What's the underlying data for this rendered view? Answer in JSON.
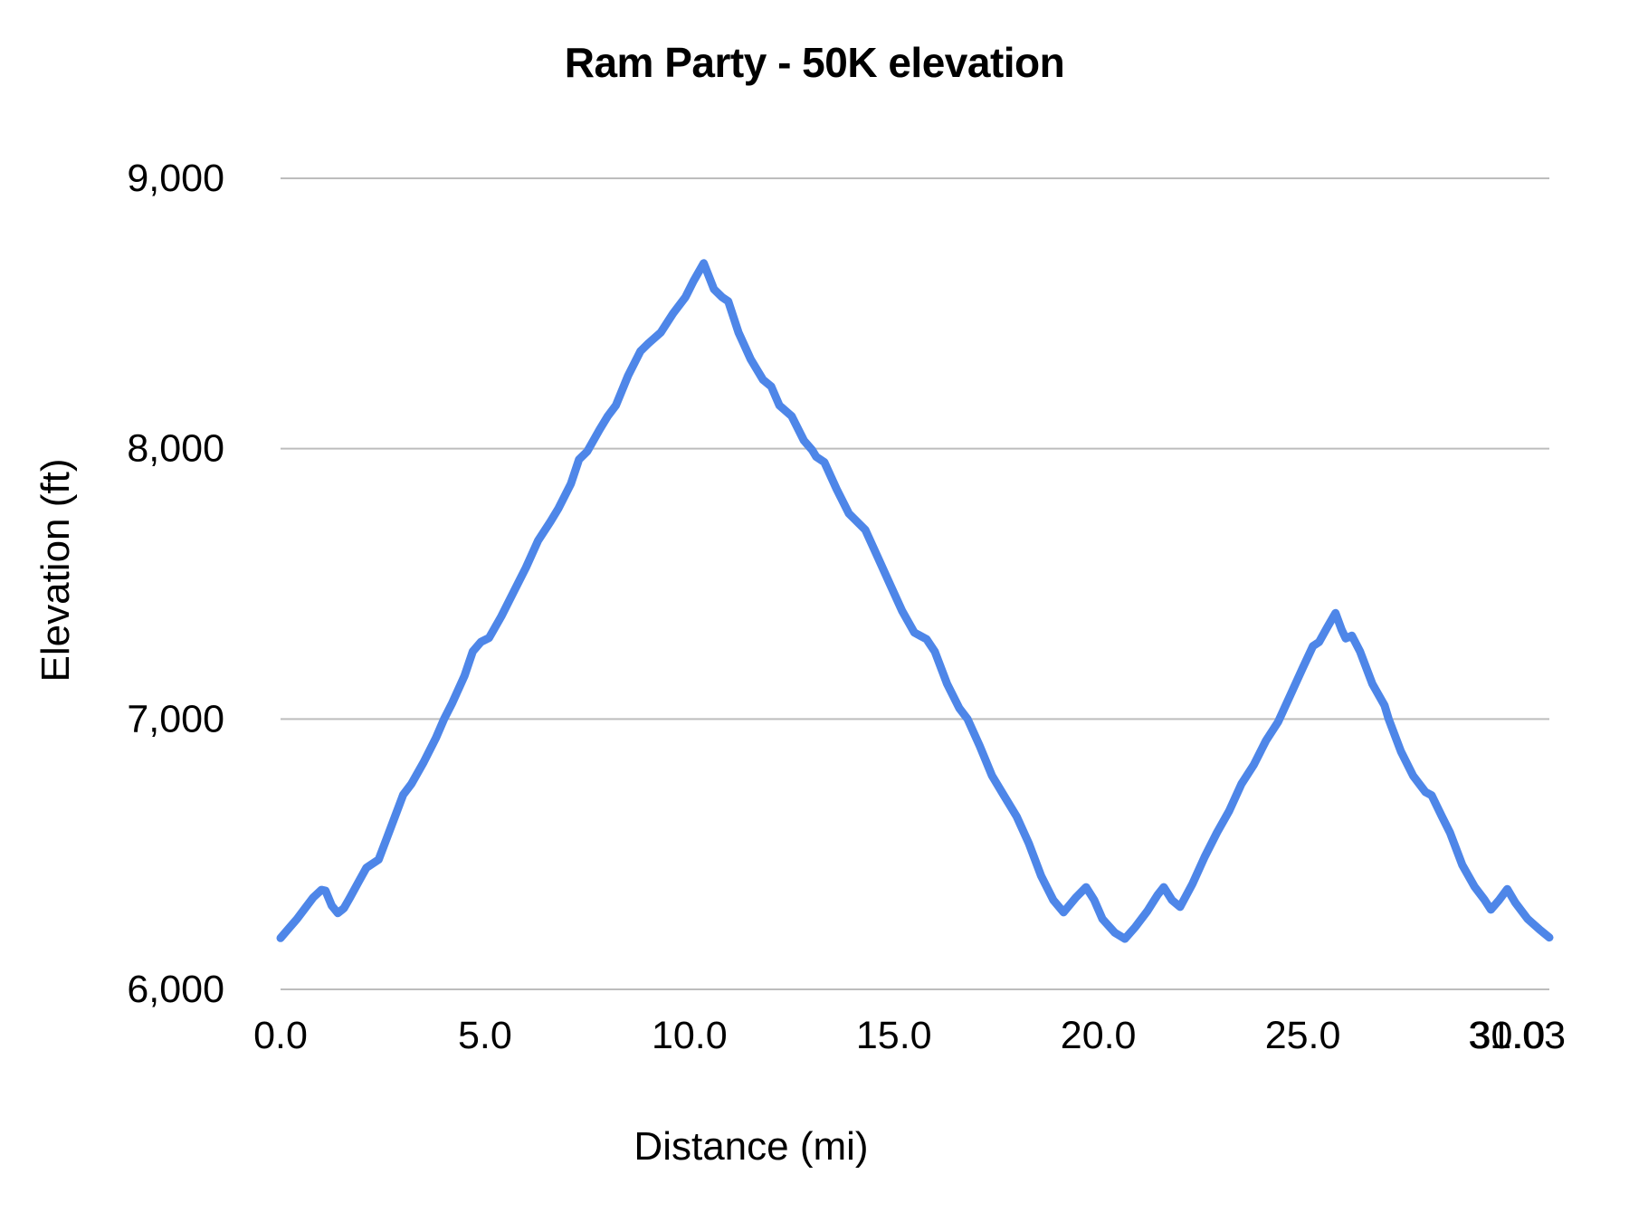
{
  "chart_data": {
    "type": "line",
    "title": "Ram Party - 50K elevation",
    "xlabel": "Distance (mi)",
    "ylabel": "Elevation (ft)",
    "xlim": [
      0,
      31.03
    ],
    "ylim": [
      6000,
      9000
    ],
    "x_tick_values": [
      0,
      5,
      10,
      15,
      20,
      25,
      30
    ],
    "x_tick_labels": [
      "0.0",
      "5.0",
      "10.0",
      "15.0",
      "20.0",
      "25.0",
      "30.0"
    ],
    "x_end_label": "31.03",
    "y_tick_values": [
      6000,
      7000,
      8000,
      9000
    ],
    "y_tick_labels": [
      "6,000",
      "7,000",
      "8,000",
      "9,000"
    ],
    "grid": "horizontal",
    "legend": "none",
    "line_color": "#4e86e8",
    "gridline_color": "#bdbdbd",
    "series": [
      {
        "name": "Elevation",
        "points": [
          [
            0.0,
            6190
          ],
          [
            0.2,
            6225
          ],
          [
            0.4,
            6260
          ],
          [
            0.6,
            6300
          ],
          [
            0.8,
            6340
          ],
          [
            1.0,
            6368
          ],
          [
            1.1,
            6365
          ],
          [
            1.25,
            6310
          ],
          [
            1.4,
            6282
          ],
          [
            1.55,
            6300
          ],
          [
            1.7,
            6340
          ],
          [
            1.9,
            6395
          ],
          [
            2.1,
            6450
          ],
          [
            2.4,
            6480
          ],
          [
            2.6,
            6560
          ],
          [
            2.8,
            6640
          ],
          [
            3.0,
            6720
          ],
          [
            3.2,
            6760
          ],
          [
            3.5,
            6840
          ],
          [
            3.8,
            6930
          ],
          [
            4.0,
            7000
          ],
          [
            4.2,
            7060
          ],
          [
            4.5,
            7160
          ],
          [
            4.7,
            7250
          ],
          [
            4.9,
            7285
          ],
          [
            5.1,
            7300
          ],
          [
            5.4,
            7380
          ],
          [
            5.7,
            7470
          ],
          [
            6.0,
            7560
          ],
          [
            6.3,
            7660
          ],
          [
            6.6,
            7730
          ],
          [
            6.8,
            7780
          ],
          [
            7.1,
            7870
          ],
          [
            7.3,
            7960
          ],
          [
            7.5,
            7990
          ],
          [
            7.8,
            8070
          ],
          [
            8.0,
            8120
          ],
          [
            8.2,
            8160
          ],
          [
            8.5,
            8270
          ],
          [
            8.8,
            8360
          ],
          [
            9.0,
            8390
          ],
          [
            9.3,
            8430
          ],
          [
            9.6,
            8500
          ],
          [
            9.9,
            8560
          ],
          [
            10.1,
            8620
          ],
          [
            10.35,
            8686
          ],
          [
            10.6,
            8590
          ],
          [
            10.8,
            8560
          ],
          [
            10.95,
            8545
          ],
          [
            11.2,
            8430
          ],
          [
            11.5,
            8330
          ],
          [
            11.8,
            8255
          ],
          [
            12.0,
            8230
          ],
          [
            12.2,
            8160
          ],
          [
            12.5,
            8120
          ],
          [
            12.8,
            8030
          ],
          [
            13.0,
            7995
          ],
          [
            13.1,
            7970
          ],
          [
            13.3,
            7950
          ],
          [
            13.6,
            7850
          ],
          [
            13.9,
            7760
          ],
          [
            14.3,
            7700
          ],
          [
            14.6,
            7600
          ],
          [
            14.9,
            7500
          ],
          [
            15.2,
            7400
          ],
          [
            15.5,
            7320
          ],
          [
            15.8,
            7295
          ],
          [
            16.0,
            7250
          ],
          [
            16.3,
            7130
          ],
          [
            16.6,
            7040
          ],
          [
            16.8,
            7000
          ],
          [
            17.1,
            6900
          ],
          [
            17.4,
            6790
          ],
          [
            17.7,
            6715
          ],
          [
            18.0,
            6640
          ],
          [
            18.3,
            6540
          ],
          [
            18.6,
            6420
          ],
          [
            18.9,
            6330
          ],
          [
            19.15,
            6285
          ],
          [
            19.45,
            6340
          ],
          [
            19.7,
            6378
          ],
          [
            19.9,
            6330
          ],
          [
            20.1,
            6260
          ],
          [
            20.4,
            6210
          ],
          [
            20.65,
            6187
          ],
          [
            20.9,
            6230
          ],
          [
            21.2,
            6290
          ],
          [
            21.45,
            6350
          ],
          [
            21.6,
            6378
          ],
          [
            21.8,
            6330
          ],
          [
            22.0,
            6305
          ],
          [
            22.3,
            6390
          ],
          [
            22.6,
            6490
          ],
          [
            22.9,
            6580
          ],
          [
            23.2,
            6660
          ],
          [
            23.5,
            6760
          ],
          [
            23.8,
            6830
          ],
          [
            24.1,
            6920
          ],
          [
            24.4,
            6990
          ],
          [
            24.7,
            7090
          ],
          [
            25.0,
            7190
          ],
          [
            25.25,
            7270
          ],
          [
            25.4,
            7285
          ],
          [
            25.6,
            7340
          ],
          [
            25.8,
            7392
          ],
          [
            25.95,
            7330
          ],
          [
            26.05,
            7298
          ],
          [
            26.2,
            7308
          ],
          [
            26.4,
            7250
          ],
          [
            26.7,
            7130
          ],
          [
            27.0,
            7050
          ],
          [
            27.1,
            7000
          ],
          [
            27.4,
            6880
          ],
          [
            27.7,
            6790
          ],
          [
            28.0,
            6730
          ],
          [
            28.15,
            6718
          ],
          [
            28.4,
            6640
          ],
          [
            28.6,
            6580
          ],
          [
            28.9,
            6460
          ],
          [
            29.2,
            6380
          ],
          [
            29.45,
            6330
          ],
          [
            29.6,
            6295
          ],
          [
            29.8,
            6330
          ],
          [
            30.0,
            6371
          ],
          [
            30.2,
            6320
          ],
          [
            30.5,
            6260
          ],
          [
            30.8,
            6220
          ],
          [
            31.03,
            6192
          ]
        ]
      }
    ]
  }
}
